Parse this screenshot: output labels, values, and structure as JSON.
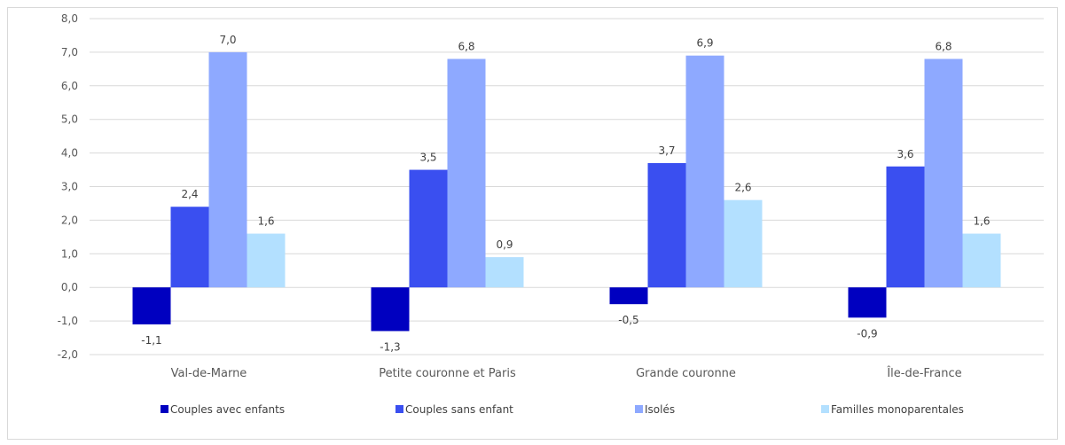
{
  "chart_data": {
    "type": "bar",
    "title": "",
    "xlabel": "",
    "ylabel": "",
    "ylim": [
      -2.0,
      8.0
    ],
    "yticks": [
      -2.0,
      -1.0,
      0.0,
      1.0,
      2.0,
      3.0,
      4.0,
      5.0,
      6.0,
      7.0,
      8.0
    ],
    "ytick_labels": [
      "-2,0",
      "-1,0",
      "0,0",
      "1,0",
      "2,0",
      "3,0",
      "4,0",
      "5,0",
      "6,0",
      "7,0",
      "8,0"
    ],
    "grid": true,
    "legend_position": "bottom",
    "categories": [
      "Val-de-Marne",
      "Petite couronne et Paris",
      "Grande couronne",
      "Île-de-France"
    ],
    "series": [
      {
        "name": "Couples avec enfants",
        "color": "#0000c0",
        "values": [
          -1.1,
          -1.3,
          -0.5,
          -0.9
        ],
        "labels": [
          "-1,1",
          "-1,3",
          "-0,5",
          "-0,9"
        ]
      },
      {
        "name": "Couples sans enfant",
        "color": "#3a4ff0",
        "values": [
          2.4,
          3.5,
          3.7,
          3.6
        ],
        "labels": [
          "2,4",
          "3,5",
          "3,7",
          "3,6"
        ]
      },
      {
        "name": "Isolés",
        "color": "#8ea9ff",
        "values": [
          7.0,
          6.8,
          6.9,
          6.8
        ],
        "labels": [
          "7,0",
          "6,8",
          "6,9",
          "6,8"
        ]
      },
      {
        "name": "Familles monoparentales",
        "color": "#b3e0ff",
        "values": [
          1.6,
          0.9,
          2.6,
          1.6
        ],
        "labels": [
          "1,6",
          "0,9",
          "2,6",
          "1,6"
        ]
      }
    ]
  }
}
